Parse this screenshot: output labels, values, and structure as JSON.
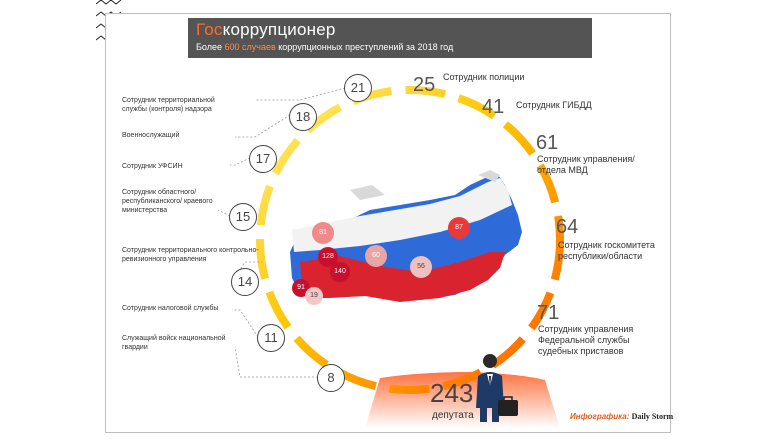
{
  "header": {
    "title_accent": "Гос",
    "title_rest": "коррупционер",
    "subtitle_pre": "Более ",
    "subtitle_acc": "600 случаев",
    "subtitle_post": " коррупционных преступлений за 2018 год"
  },
  "left_items": [
    {
      "num": "21",
      "label": "Сотрудник территориальной службы (контроля) надзора"
    },
    {
      "num": "18",
      "label": "Военнослужащий"
    },
    {
      "num": "17",
      "label": "Сотрудник УФСИН"
    },
    {
      "num": "15",
      "label": "Сотрудник областного/ республиканского/ краевого министерства"
    },
    {
      "num": "14",
      "label": "Сотрудник территориального контрольно-ревизионного управления"
    },
    {
      "num": "11",
      "label": "Сотрудник налоговой службы"
    },
    {
      "num": "8",
      "label": "Служащий войск национальной гвардии"
    }
  ],
  "right_items": [
    {
      "num": "25",
      "label": "Сотрудник полиции"
    },
    {
      "num": "41",
      "label": "Сотрудник ГИБДД"
    },
    {
      "num": "61",
      "label": "Сотрудник управления/ отдела МВД"
    },
    {
      "num": "64",
      "label": "Сотрудник госкомитета республики/области"
    },
    {
      "num": "71",
      "label": "Сотрудник управления Федеральной службы судебных приставов"
    }
  ],
  "map_bubbles": [
    "81",
    "128",
    "140",
    "60",
    "56",
    "87",
    "91",
    "19"
  ],
  "bottom": {
    "num": "243",
    "label": "депутата"
  },
  "credit": {
    "pre": "Инфографика: ",
    "brand": "Daily Storm"
  },
  "colors": {
    "accent": "#ff6a2e",
    "title_bg": "#545454",
    "arc_yellow": "#ffe34d",
    "arc_orange": "#ff6a00"
  }
}
